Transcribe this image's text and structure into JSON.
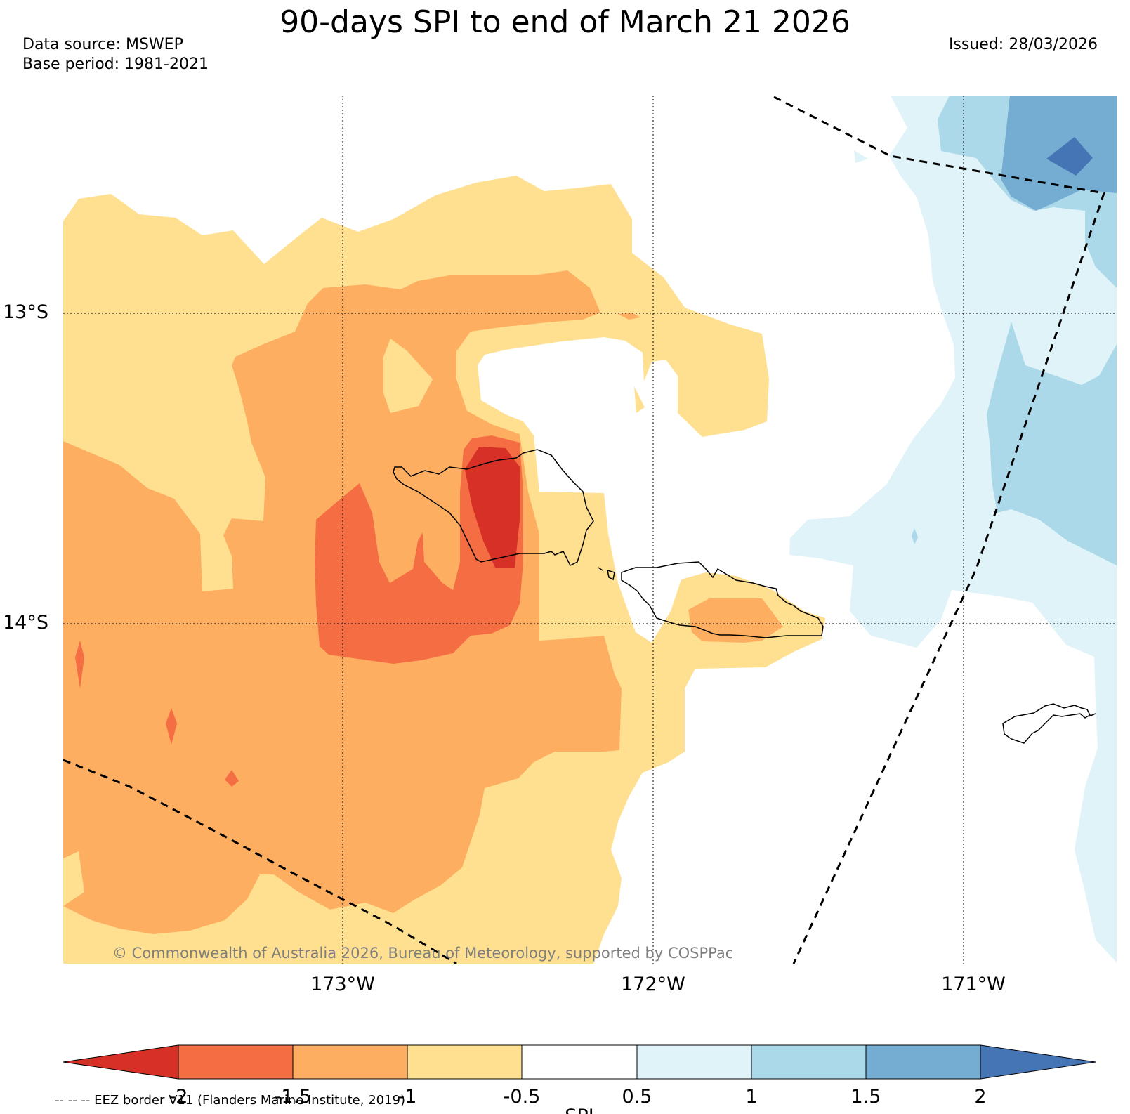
{
  "title": "90-days SPI to end of March 21 2026",
  "data_source": "Data source: MSWEP",
  "base_period": "Base period: 1981-2021",
  "issued": "Issued: 28/03/2026",
  "copyright": "© Commonwealth of Australia 2026, Bureau of Meteorology, supported by COSPPac",
  "lat_labels": [
    "13°S",
    "14°S"
  ],
  "lon_labels": [
    "173°W",
    "172°W",
    "171°W"
  ],
  "colorbar": {
    "label": "SPI",
    "ticks": [
      "-2",
      "-1.5",
      "-1",
      "-0.5",
      "0.5",
      "1",
      "1.5",
      "2"
    ],
    "colors": {
      "lt_minus2": "#d73027",
      "m2_m15": "#f46d43",
      "m15_m1": "#fdae61",
      "m1_m05": "#fee090",
      "neutral": "#ffffff",
      "p05_p1": "#e0f3f8",
      "p1_p15": "#abd9e9",
      "p15_p2": "#74add1",
      "gt_2": "#4575b4"
    }
  },
  "legend_note": "-- -- -- EEZ border V11 (Flanders Marine Institute, 2019)"
}
